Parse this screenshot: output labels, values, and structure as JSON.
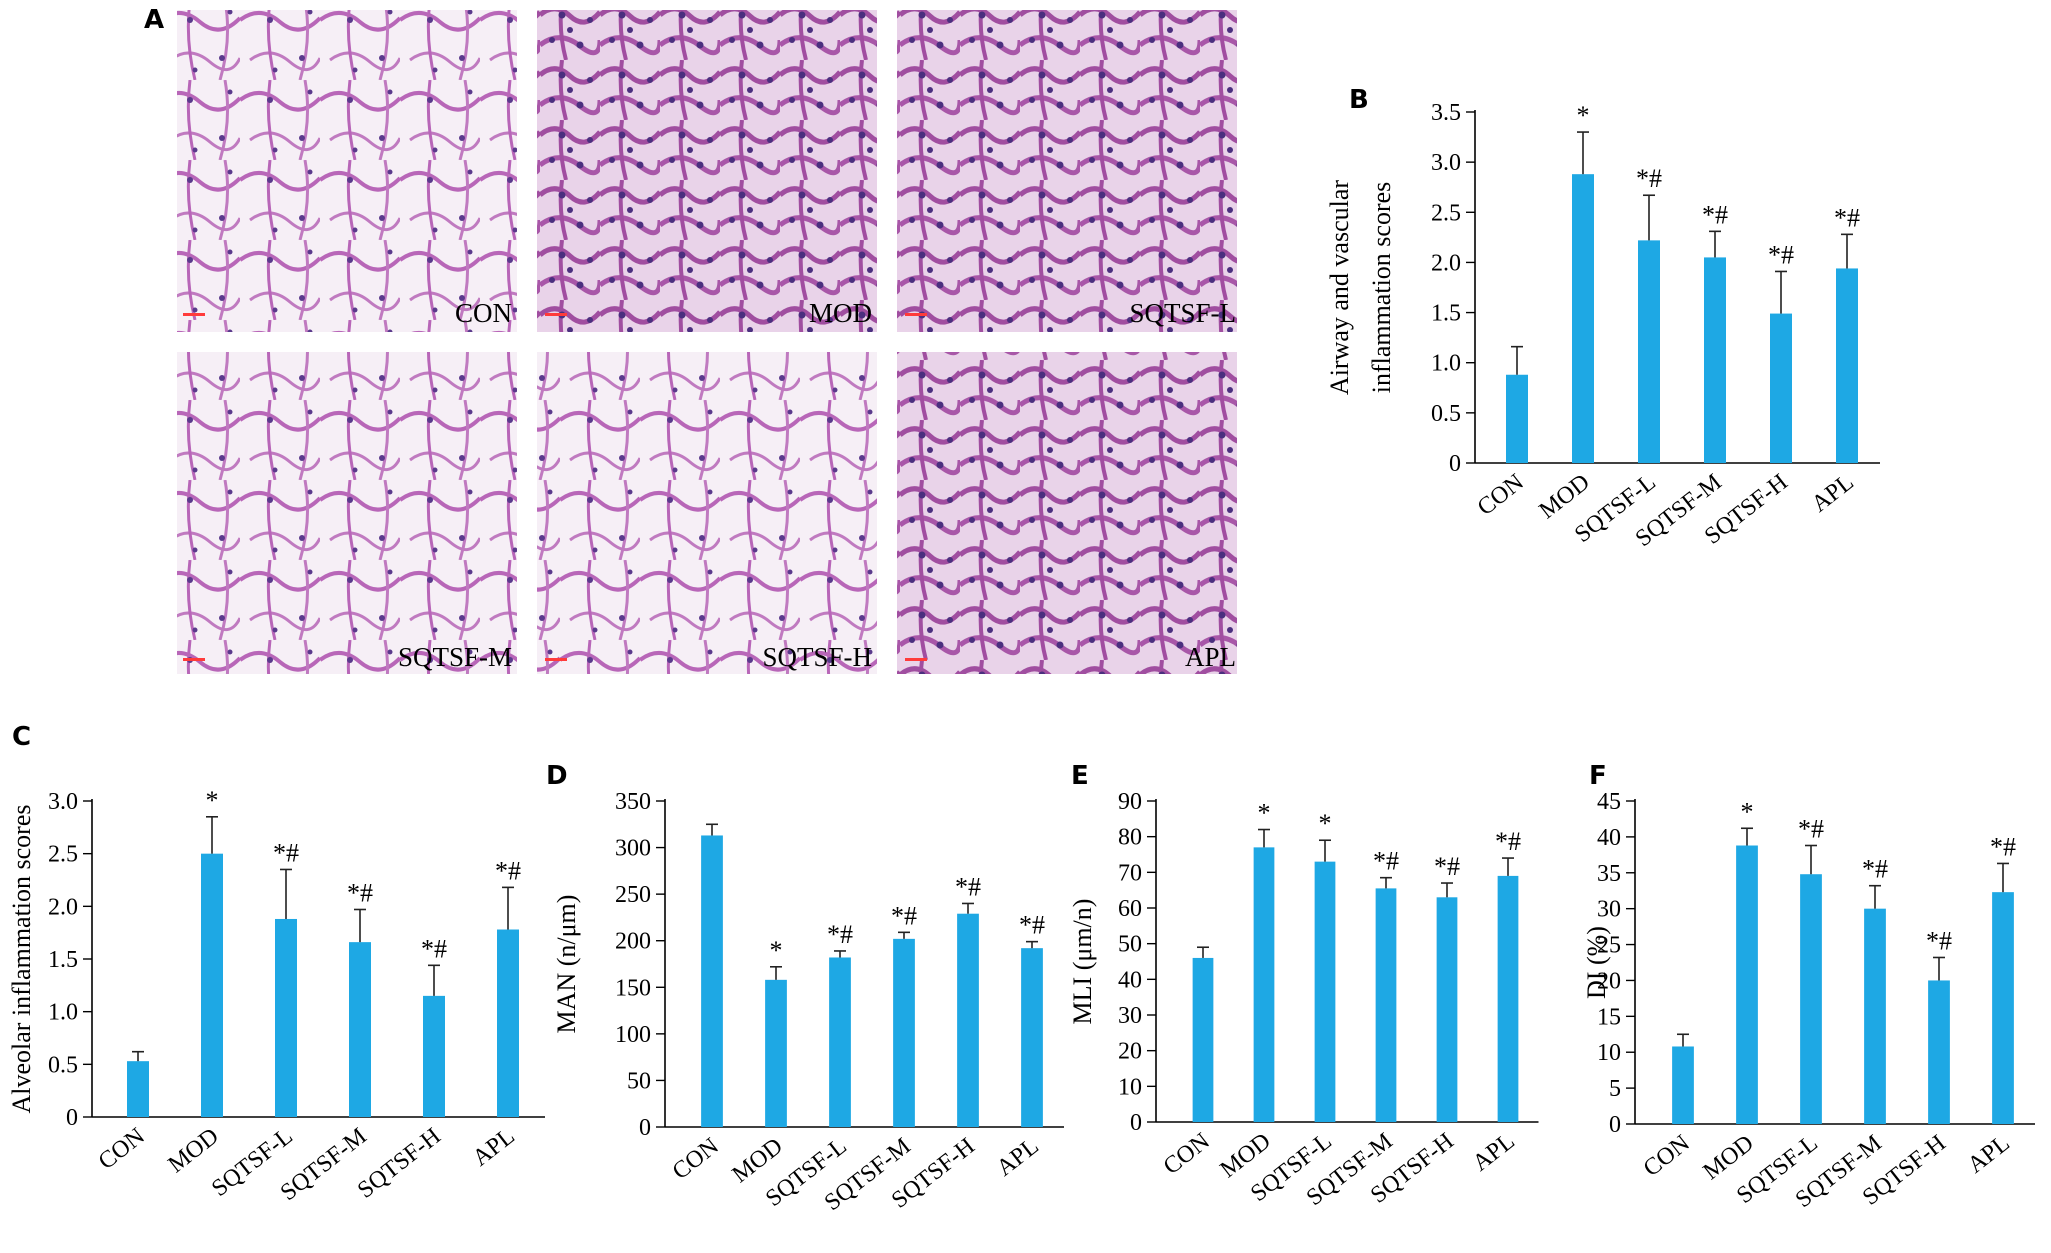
{
  "colors": {
    "bar": "#1ea8e4",
    "tissue_bg": "#f4edf4",
    "tissue_stain": "#b45fb4",
    "nuclei": "#5a3a8c",
    "scale_bar": "#ff3b3b"
  },
  "micrographs": {
    "panel": "A",
    "labels": [
      "CON",
      "MOD",
      "SQTSF-L",
      "SQTSF-M",
      "SQTSF-H",
      "APL"
    ]
  },
  "chart_data": [
    {
      "panel": "B",
      "type": "bar",
      "categories": [
        "CON",
        "MOD",
        "SQTSF-L",
        "SQTSF-M",
        "SQTSF-H",
        "APL"
      ],
      "values": [
        0.88,
        2.88,
        2.22,
        2.05,
        1.49,
        1.94
      ],
      "errors": [
        0.28,
        0.42,
        0.45,
        0.26,
        0.42,
        0.34
      ],
      "significance": [
        "",
        "*",
        "*#",
        "*#",
        "*#",
        "*#"
      ],
      "ylabel": [
        "Airway and vascular",
        "inflammation scores"
      ],
      "ylim": [
        0,
        3.5
      ],
      "yticks": [
        "0",
        "0.5",
        "1.0",
        "1.5",
        "2.0",
        "2.5",
        "3.0",
        "3.5"
      ],
      "grid": false
    },
    {
      "panel": "C",
      "type": "bar",
      "categories": [
        "CON",
        "MOD",
        "SQTSF-L",
        "SQTSF-M",
        "SQTSF-H",
        "APL"
      ],
      "values": [
        0.53,
        2.5,
        1.88,
        1.66,
        1.15,
        1.78
      ],
      "errors": [
        0.09,
        0.35,
        0.47,
        0.31,
        0.29,
        0.4
      ],
      "significance": [
        "",
        "*",
        "*#",
        "*#",
        "*#",
        "*#"
      ],
      "ylabel": [
        "Alveolar inflammation scores"
      ],
      "ylim": [
        0,
        3.0
      ],
      "yticks": [
        "0",
        "0.5",
        "1.0",
        "1.5",
        "2.0",
        "2.5",
        "3.0"
      ],
      "grid": false
    },
    {
      "panel": "D",
      "type": "bar",
      "categories": [
        "CON",
        "MOD",
        "SQTSF-L",
        "SQTSF-M",
        "SQTSF-H",
        "APL"
      ],
      "values": [
        313,
        158,
        182,
        202,
        229,
        192
      ],
      "errors": [
        12,
        14,
        7,
        7,
        11,
        7
      ],
      "significance": [
        "",
        "*",
        "*#",
        "*#",
        "*#",
        "*#"
      ],
      "ylabel": [
        "MAN (n/μm)"
      ],
      "ylim": [
        0,
        350
      ],
      "yticks": [
        "0",
        "50",
        "100",
        "150",
        "200",
        "250",
        "300",
        "350"
      ],
      "grid": false
    },
    {
      "panel": "E",
      "type": "bar",
      "categories": [
        "CON",
        "MOD",
        "SQTSF-L",
        "SQTSF-M",
        "SQTSF-H",
        "APL"
      ],
      "values": [
        46,
        77,
        73,
        65.5,
        63,
        69
      ],
      "errors": [
        3,
        5,
        6,
        3,
        4,
        5
      ],
      "significance": [
        "",
        "*",
        "*",
        "*#",
        "*#",
        "*#"
      ],
      "ylabel": [
        "MLI (μm/n)"
      ],
      "ylim": [
        0,
        90
      ],
      "yticks": [
        "0",
        "10",
        "20",
        "30",
        "40",
        "50",
        "60",
        "70",
        "80",
        "90"
      ],
      "grid": false
    },
    {
      "panel": "F",
      "type": "bar",
      "categories": [
        "CON",
        "MOD",
        "SQTSF-L",
        "SQTSF-M",
        "SQTSF-H",
        "APL"
      ],
      "values": [
        10.8,
        38.8,
        34.8,
        30,
        20,
        32.3
      ],
      "errors": [
        1.7,
        2.4,
        4,
        3.2,
        3.2,
        4
      ],
      "significance": [
        "",
        "*",
        "*#",
        "*#",
        "*#",
        "*#"
      ],
      "ylabel": [
        "DI (%)"
      ],
      "ylim": [
        0,
        45
      ],
      "yticks": [
        "0",
        "5",
        "10",
        "15",
        "20",
        "25",
        "30",
        "35",
        "40",
        "45"
      ],
      "grid": false
    }
  ]
}
